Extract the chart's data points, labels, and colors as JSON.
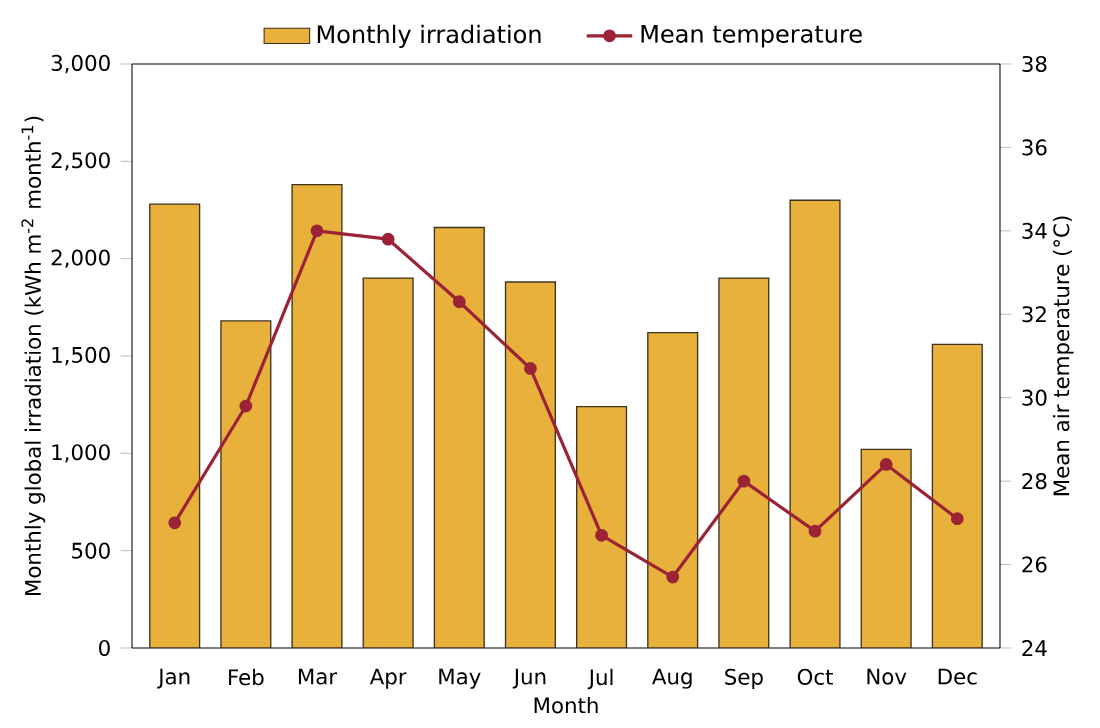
{
  "chart_data": {
    "type": "bar",
    "xlabel": "Month",
    "ylabel": "Monthly global irradiation (kWh m$^{-2}$ month$^{-1}$)",
    "y2label": "Mean air temperature (°C)",
    "categories": [
      "Jan",
      "Feb",
      "Mar",
      "Apr",
      "May",
      "Jun",
      "Jul",
      "Aug",
      "Sep",
      "Oct",
      "Nov",
      "Dec"
    ],
    "series": [
      {
        "name": "Monthly irradiation",
        "color": "#e8b13c",
        "values": [
          2280,
          1680,
          2380,
          1900,
          2160,
          1880,
          1240,
          1620,
          1900,
          2300,
          1020,
          1560
        ]
      },
      {
        "name": "Mean temperature",
        "type": "line",
        "axis": "y2",
        "color": "#9b2335",
        "marker": "circle",
        "line_style": "solid",
        "values": [
          27.0,
          29.8,
          34.0,
          33.8,
          32.3,
          30.7,
          26.7,
          25.7,
          28.0,
          26.8,
          28.4,
          27.1
        ]
      }
    ],
    "ylim": [
      0,
      3000
    ],
    "yticks": [
      0,
      {
        "value": 500,
        "label": "500"
      },
      {
        "value": 1000,
        "label": "1,000"
      },
      {
        "value": 1500,
        "label": "1,500"
      },
      {
        "value": 2000,
        "label": "2,000"
      },
      {
        "value": 2500,
        "label": "2,500"
      },
      {
        "value": 3000,
        "label": "3,000"
      }
    ],
    "y2lim": [
      24,
      38
    ],
    "y2ticks": [
      24,
      26,
      28,
      30,
      32,
      34,
      36,
      38
    ],
    "legend": "top",
    "grid": false
  }
}
